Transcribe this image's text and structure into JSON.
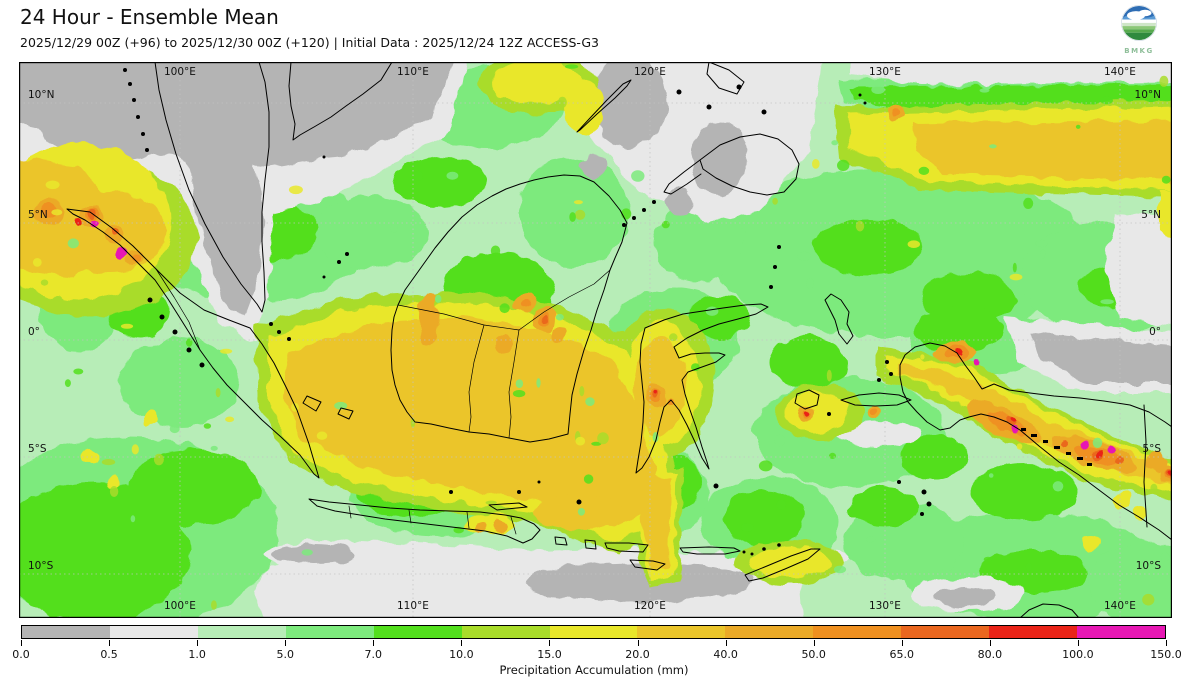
{
  "header": {
    "title": "24 Hour - Ensemble Mean",
    "subtitle": "2025/12/29 00Z (+96) to 2025/12/30 00Z (+120) | Initial Data : 2025/12/24 12Z ACCESS-G3",
    "logo_text": "BMKG"
  },
  "map": {
    "lon_labels": [
      "100°E",
      "110°E",
      "120°E",
      "130°E",
      "140°E"
    ],
    "lat_labels": [
      "10°N",
      "5°N",
      "0°",
      "5°S",
      "10°S"
    ]
  },
  "colorbar": {
    "label": "Precipitation Accumulation (mm)",
    "ticks": [
      "0.0",
      "0.5",
      "1.0",
      "5.0",
      "7.0",
      "10.0",
      "15.0",
      "20.0",
      "40.0",
      "50.0",
      "65.0",
      "80.0",
      "100.0",
      "150.0"
    ],
    "segment_colors": [
      "#b4b4b4",
      "#e8e8e8",
      "#b7edb7",
      "#7dea7d",
      "#53df1d",
      "#a9dc2a",
      "#e9e72b",
      "#ebc52b",
      "#ebaa28",
      "#ef9020",
      "#ea671f",
      "#ea2418",
      "#e718b4"
    ]
  },
  "chart_data": {
    "type": "heatmap",
    "title": "24 Hour - Ensemble Mean",
    "variable": "Precipitation Accumulation (mm)",
    "valid_period": "2025/12/29 00Z (+96) to 2025/12/30 00Z (+120)",
    "initial_data": "2025/12/24 12Z ACCESS-G3",
    "scale_breaks_mm": [
      0.0,
      0.5,
      1.0,
      5.0,
      7.0,
      10.0,
      15.0,
      20.0,
      40.0,
      50.0,
      65.0,
      80.0,
      100.0,
      150.0
    ],
    "scale_colors": [
      "#b4b4b4",
      "#e8e8e8",
      "#b7edb7",
      "#7dea7d",
      "#53df1d",
      "#a9dc2a",
      "#e9e72b",
      "#ebc52b",
      "#ebaa28",
      "#ef9020",
      "#ea671f",
      "#ea2418",
      "#e718b4"
    ],
    "x_axis": {
      "label_type": "longitude",
      "ticks": [
        "100°E",
        "110°E",
        "120°E",
        "130°E",
        "140°E"
      ]
    },
    "y_axis": {
      "label_type": "latitude",
      "ticks": [
        "10°N",
        "5°N",
        "0°",
        "5°S",
        "10°S"
      ]
    },
    "legend_position": "bottom"
  }
}
